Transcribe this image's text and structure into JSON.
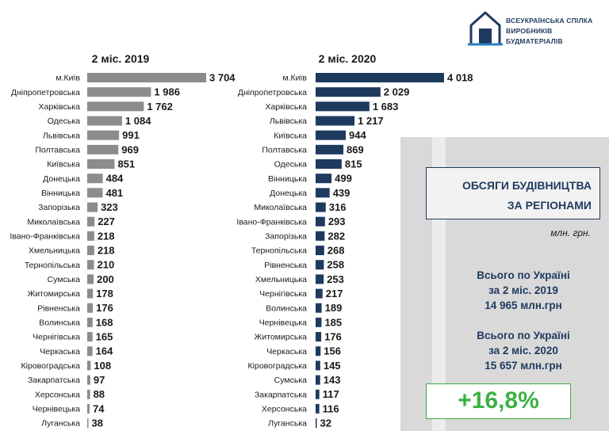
{
  "logo": {
    "line1": "ВСЕУКРАЇНСЬКА СПІЛКА",
    "line2": "ВИРОБНИКІВ БУДМАТЕРІАЛІВ"
  },
  "chart_data": [
    {
      "type": "bar",
      "orientation": "horizontal",
      "title": "2 міс. 2019",
      "color": "#8c8c8c",
      "categories": [
        "м.Київ",
        "Дніпропетровська",
        "Харківська",
        "Одеська",
        "Львівська",
        "Полтавська",
        "Київська",
        "Донецька",
        "Вінницька",
        "Запорізька",
        "Миколаївська",
        "Івано-Франківська",
        "Хмельницька",
        "Тернопільська",
        "Сумська",
        "Житомирська",
        "Рівненська",
        "Волинська",
        "Чернігівська",
        "Черкаська",
        "Кіровоградська",
        "Закарпатська",
        "Херсонська",
        "Чернівецька",
        "Луганська"
      ],
      "values": [
        3704,
        1986,
        1762,
        1084,
        991,
        969,
        851,
        484,
        481,
        323,
        227,
        218,
        218,
        210,
        200,
        178,
        176,
        168,
        165,
        164,
        108,
        97,
        88,
        74,
        38
      ],
      "value_labels": [
        "3 704",
        "1 986",
        "1 762",
        "1 084",
        "991",
        "969",
        "851",
        "484",
        "481",
        "323",
        "227",
        "218",
        "218",
        "210",
        "200",
        "178",
        "176",
        "168",
        "165",
        "164",
        "108",
        "97",
        "88",
        "74",
        "38"
      ]
    },
    {
      "type": "bar",
      "orientation": "horizontal",
      "title": "2 міс. 2020",
      "color": "#1f3a5f",
      "categories": [
        "м.Київ",
        "Дніпропетровська",
        "Харківська",
        "Львівська",
        "Київська",
        "Полтавська",
        "Одеська",
        "Вінницька",
        "Донецька",
        "Миколаївська",
        "Івано-Франківська",
        "Запорізька",
        "Тернопільська",
        "Рівненська",
        "Хмельницька",
        "Чернігівська",
        "Волинська",
        "Чернівецька",
        "Житомирська",
        "Черкаська",
        "Кіровоградська",
        "Сумська",
        "Закарпатська",
        "Херсонська",
        "Луганська"
      ],
      "values": [
        4018,
        2029,
        1683,
        1217,
        944,
        869,
        815,
        499,
        439,
        316,
        293,
        282,
        268,
        258,
        253,
        217,
        189,
        185,
        176,
        156,
        145,
        143,
        117,
        116,
        32
      ],
      "value_labels": [
        "4 018",
        "2 029",
        "1 683",
        "1 217",
        "944",
        "869",
        "815",
        "499",
        "439",
        "316",
        "293",
        "282",
        "268",
        "258",
        "253",
        "217",
        "189",
        "185",
        "176",
        "156",
        "145",
        "143",
        "117",
        "116",
        "32"
      ]
    }
  ],
  "sidebar": {
    "title_line1": "ОБСЯГИ БУДІВНИЦТВА",
    "title_line2": "ЗА РЕГІОНАМИ",
    "unit": "млн. грн.",
    "total_2019": [
      "Всього по Україні",
      "за 2 міс. 2019",
      "14 965 млн.грн"
    ],
    "total_2020": [
      "Всього по Україні",
      "за 2 міс. 2020",
      "15 657 млн.грн"
    ],
    "growth": "+16,8%"
  },
  "colors": {
    "accent": "#1f3a5f",
    "gray_bar": "#8c8c8c",
    "growth": "#3cb043",
    "panel": "#d9d9d9"
  }
}
